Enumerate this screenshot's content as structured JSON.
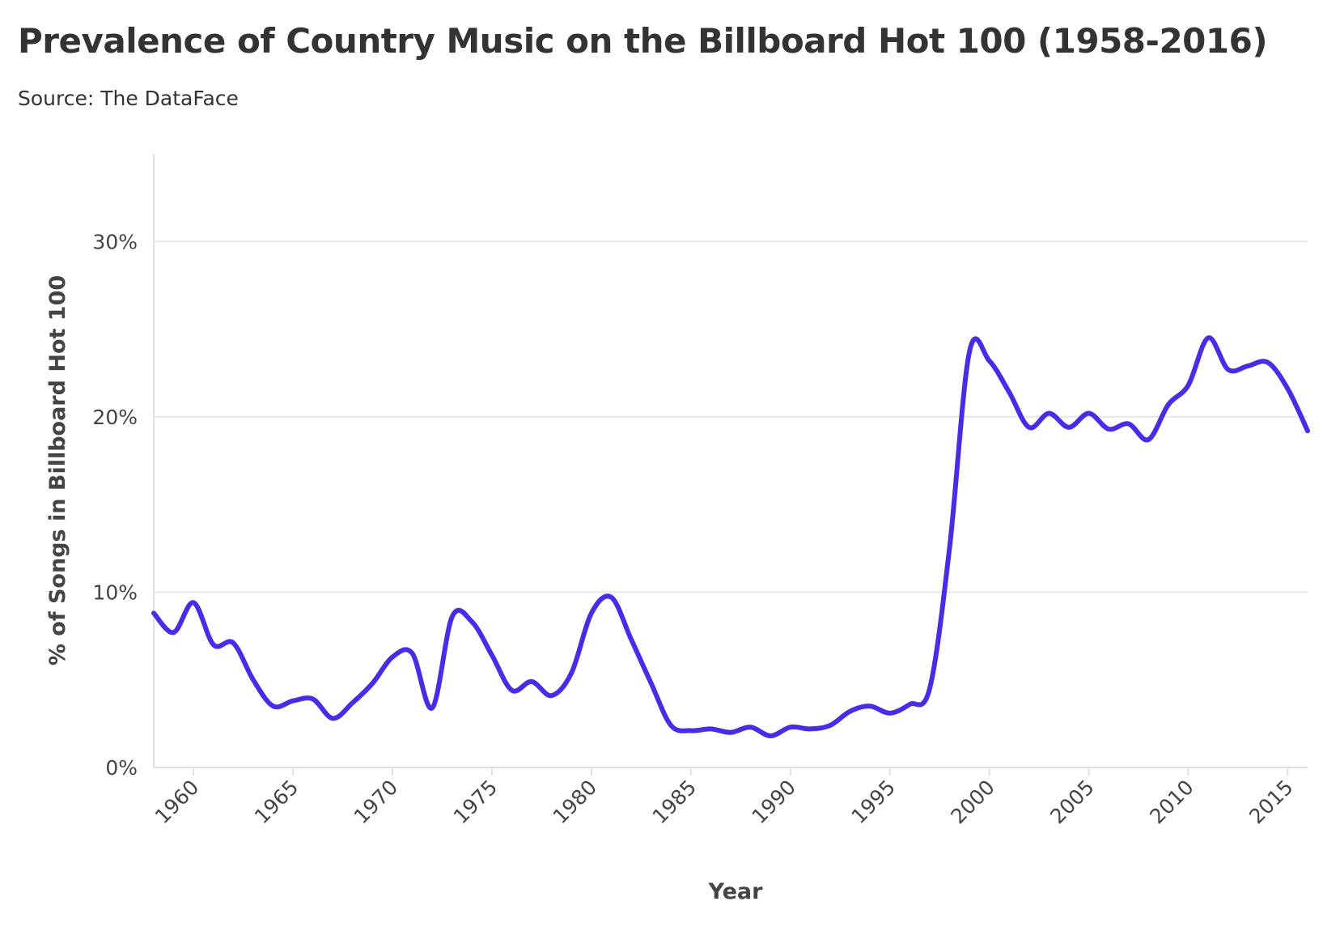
{
  "title": "Prevalence of Country Music on the Billboard Hot 100 (1958-2016)",
  "subtitle": "Source: The DataFace",
  "colors": {
    "line": "#4A2BE6",
    "grid": "#E8E8E8",
    "axis": "#E0E0E0"
  },
  "chart_data": {
    "type": "line",
    "xlabel": "Year",
    "ylabel": "% of Songs in Billboard Hot 100",
    "xlim": [
      1958,
      2016
    ],
    "ylim": [
      0,
      35
    ],
    "x_ticks": [
      1960,
      1965,
      1970,
      1975,
      1980,
      1985,
      1990,
      1995,
      2000,
      2005,
      2010,
      2015
    ],
    "x_tick_labels": [
      "1960",
      "1965",
      "1970",
      "1975",
      "1980",
      "1985",
      "1990",
      "1995",
      "2000",
      "2005",
      "2010",
      "2015"
    ],
    "y_ticks": [
      0,
      10,
      20,
      30
    ],
    "y_tick_labels": [
      "0%",
      "10%",
      "20%",
      "30%"
    ],
    "grid": true,
    "series": [
      {
        "x": [
          1958,
          1959,
          1960,
          1961,
          1962,
          1963,
          1964,
          1965,
          1966,
          1967,
          1968,
          1969,
          1970,
          1971,
          1972,
          1973,
          1974,
          1975,
          1976,
          1977,
          1978,
          1979,
          1980,
          1981,
          1982,
          1983,
          1984,
          1985,
          1986,
          1987,
          1988,
          1989,
          1990,
          1991,
          1992,
          1993,
          1994,
          1995,
          1996,
          1997,
          1998,
          1999,
          2000,
          2001,
          2002,
          2003,
          2004,
          2005,
          2006,
          2007,
          2008,
          2009,
          2010,
          2011,
          2012,
          2013,
          2014,
          2015,
          2016
        ],
        "values": [
          8.8,
          7.7,
          9.4,
          7.0,
          7.1,
          5.0,
          3.5,
          3.8,
          3.9,
          2.8,
          3.7,
          4.8,
          6.3,
          6.5,
          3.4,
          8.6,
          8.3,
          6.4,
          4.4,
          4.9,
          4.1,
          5.4,
          8.8,
          9.7,
          7.3,
          4.8,
          2.4,
          2.1,
          2.2,
          2.0,
          2.3,
          1.8,
          2.3,
          2.2,
          2.4,
          3.2,
          3.5,
          3.1,
          3.6,
          4.5,
          12.5,
          23.7,
          23.2,
          21.4,
          19.4,
          20.2,
          19.4,
          20.2,
          19.3,
          19.6,
          18.7,
          20.7,
          21.8,
          24.5,
          22.7,
          22.9,
          23.1,
          21.6,
          19.2
        ]
      }
    ]
  }
}
